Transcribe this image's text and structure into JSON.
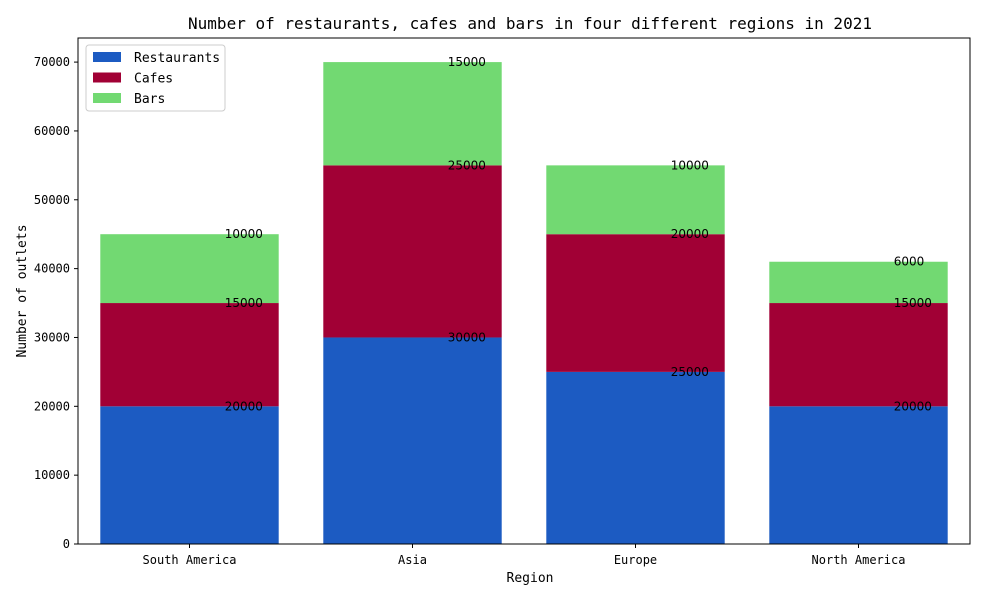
{
  "chart_data": {
    "type": "bar",
    "stacked": true,
    "title": "Number of restaurants, cafes and bars in four different regions in 2021",
    "xlabel": "Region",
    "ylabel": "Number of outlets",
    "categories": [
      "South America",
      "Asia",
      "Europe",
      "North America"
    ],
    "series": [
      {
        "name": "Restaurants",
        "color": "#1c5bc2",
        "values": [
          20000,
          30000,
          25000,
          20000
        ]
      },
      {
        "name": "Cafes",
        "color": "#a10035",
        "values": [
          15000,
          25000,
          20000,
          15000
        ]
      },
      {
        "name": "Bars",
        "color": "#72d972",
        "values": [
          10000,
          15000,
          10000,
          6000
        ]
      }
    ],
    "ylim": [
      0,
      73500
    ],
    "yticks": [
      0,
      10000,
      20000,
      30000,
      40000,
      50000,
      60000,
      70000
    ],
    "grid": false,
    "legend_position": "top-left"
  }
}
